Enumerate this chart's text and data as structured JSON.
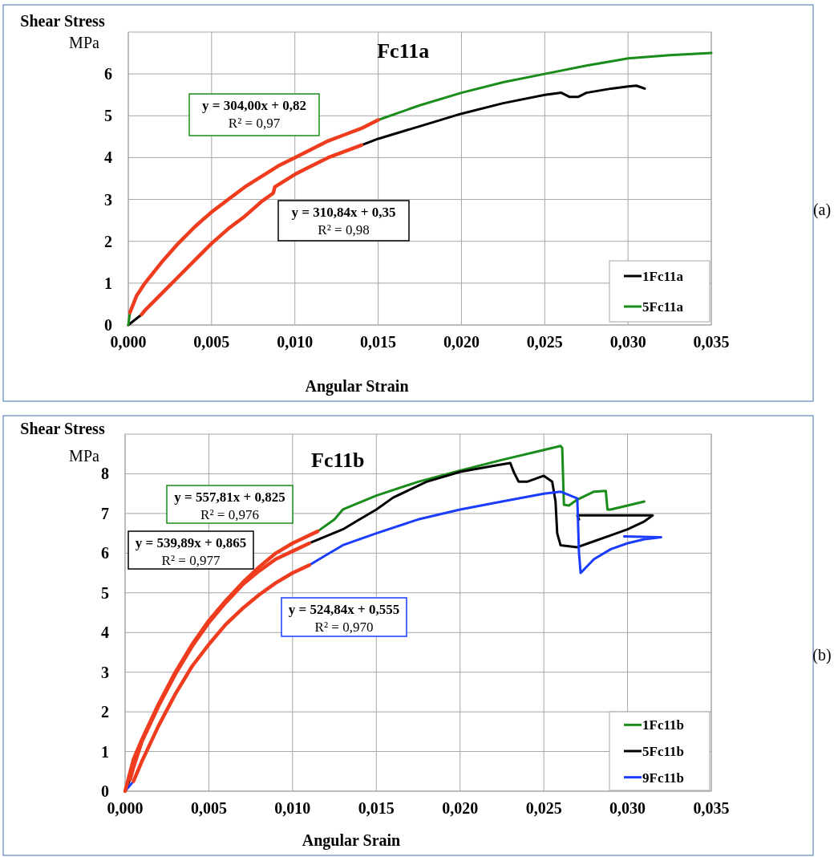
{
  "chart_data": [
    {
      "type": "line",
      "title": "Fc11a",
      "xlabel": "Angular Strain",
      "ylabel": "Shear Stress",
      "xlim": [
        0,
        0.035
      ],
      "xticks": [
        {
          "value": 0,
          "label": "0,000"
        },
        {
          "value": 0.005,
          "label": "0,005"
        },
        {
          "value": 0.01,
          "label": "0,010"
        },
        {
          "value": 0.015,
          "label": "0,015"
        },
        {
          "value": 0.02,
          "label": "0,020"
        },
        {
          "value": 0.025,
          "label": "0,025"
        },
        {
          "value": 0.03,
          "label": "0,030"
        },
        {
          "value": 0.035,
          "label": "0,035"
        }
      ],
      "ylim": [
        0,
        7
      ],
      "yticks": [
        0,
        1,
        2,
        3,
        4,
        5,
        6
      ],
      "grid": true,
      "legend": "bottom right",
      "annotations": [
        "MPa",
        "y = 304,00x + 0,82",
        "R² = 0,97",
        "y = 310,84x + 0,35",
        "R² = 0,98",
        "(a)"
      ],
      "series": [
        {
          "name": "1Fc11a",
          "color": "#000000",
          "x": [
            0,
            0.0008,
            0.0009,
            0.014,
            0.015,
            0.0175,
            0.02,
            0.0225,
            0.025,
            0.026,
            0.0265,
            0.027,
            0.0275,
            0.029,
            0.03,
            0.0305,
            0.031
          ],
          "values": [
            0,
            0.25,
            null,
            4.3,
            4.45,
            4.75,
            5.05,
            5.3,
            5.5,
            5.55,
            5.45,
            5.45,
            5.55,
            5.65,
            5.7,
            5.72,
            5.65
          ]
        },
        {
          "name": "5Fc11a",
          "color": "#1a8c1a",
          "x": [
            0,
            0.0001,
            0.0002,
            0.015,
            0.0175,
            0.02,
            0.0225,
            0.025,
            0.0275,
            0.03,
            0.0325,
            0.035
          ],
          "values": [
            0,
            0.3,
            null,
            4.9,
            5.25,
            5.55,
            5.8,
            6.0,
            6.2,
            6.37,
            6.45,
            6.5
          ]
        },
        {
          "color": "#f03c1e",
          "x": [
            0.0008,
            0.001,
            0.002,
            0.003,
            0.004,
            0.005,
            0.006,
            0.007,
            0.008,
            0.0087,
            0.0088,
            0.01,
            0.011,
            0.012,
            0.013,
            0.014
          ],
          "values": [
            0.25,
            0.35,
            0.75,
            1.15,
            1.55,
            1.95,
            2.3,
            2.6,
            2.95,
            3.15,
            3.3,
            3.6,
            3.8,
            4.0,
            4.15,
            4.3
          ]
        },
        {
          "color": "#f03c1e",
          "x": [
            0.0001,
            0.0005,
            0.001,
            0.002,
            0.003,
            0.004,
            0.005,
            0.006,
            0.007,
            0.008,
            0.009,
            0.01,
            0.011,
            0.012,
            0.013,
            0.014,
            0.015
          ],
          "values": [
            0.3,
            0.7,
            1.0,
            1.5,
            1.95,
            2.35,
            2.7,
            3.0,
            3.3,
            3.55,
            3.8,
            4.0,
            4.2,
            4.4,
            4.55,
            4.7,
            4.9
          ]
        }
      ]
    },
    {
      "type": "line",
      "title": "Fc11b",
      "xlabel": "Angular Srain",
      "ylabel": "Shear Stress",
      "xlim": [
        0,
        0.035
      ],
      "xticks": [
        {
          "value": 0,
          "label": "0,000"
        },
        {
          "value": 0.005,
          "label": "0,005"
        },
        {
          "value": 0.01,
          "label": "0,010"
        },
        {
          "value": 0.015,
          "label": "0,015"
        },
        {
          "value": 0.02,
          "label": "0,020"
        },
        {
          "value": 0.025,
          "label": "0,025"
        },
        {
          "value": 0.03,
          "label": "0,030"
        },
        {
          "value": 0.035,
          "label": "0,035"
        }
      ],
      "ylim": [
        0,
        9
      ],
      "yticks": [
        0,
        1,
        2,
        3,
        4,
        5,
        6,
        7,
        8
      ],
      "grid": true,
      "legend": "bottom right",
      "annotations": [
        "MPa",
        "y = 557,81x + 0,825",
        "R² = 0,976",
        "y = 539,89x + 0,865",
        "R² = 0,977",
        "y = 524,84x + 0,555",
        "R² = 0,970",
        "(b)"
      ],
      "series": [
        {
          "name": "1Fc11b",
          "color": "#1a8c1a",
          "x": [
            0.0115,
            0.0125,
            0.013,
            0.015,
            0.0175,
            0.02,
            0.0225,
            0.025,
            0.026,
            0.0261,
            0.02615,
            0.0262,
            0.0265,
            0.027,
            0.028,
            0.0287,
            0.0288,
            0.029,
            0.03,
            0.031
          ],
          "values": [
            6.55,
            6.85,
            7.1,
            7.45,
            7.8,
            8.08,
            8.35,
            8.6,
            8.7,
            8.65,
            7.93,
            7.22,
            7.2,
            7.35,
            7.55,
            7.57,
            7.1,
            7.1,
            7.2,
            7.3
          ]
        },
        {
          "name": "5Fc11b",
          "color": "#000000",
          "x": [
            0,
            0.0003,
            0.0004,
            0.011,
            0.013,
            0.014,
            0.015,
            0.016,
            0.018,
            0.02,
            0.022,
            0.023,
            0.0232,
            0.0235,
            0.024,
            0.025,
            0.0255,
            0.0257,
            0.0258,
            0.026,
            0.027,
            0.028,
            0.029,
            0.03,
            0.031,
            0.0315,
            0.027,
            0.0271
          ],
          "values": [
            0,
            0.3,
            null,
            6.25,
            6.6,
            6.85,
            7.1,
            7.4,
            7.8,
            8.05,
            8.2,
            8.27,
            8.05,
            7.8,
            7.8,
            7.95,
            7.8,
            7.3,
            6.5,
            6.2,
            6.15,
            6.3,
            6.45,
            6.6,
            6.8,
            6.95,
            6.95,
            6.85
          ]
        },
        {
          "name": "9Fc11b",
          "color": "#1a3cff",
          "x": [
            0,
            0.0005,
            0.0006,
            0.011,
            0.012,
            0.013,
            0.015,
            0.0175,
            0.02,
            0.0225,
            0.025,
            0.026,
            0.027,
            0.0271,
            0.0272,
            0.028,
            0.029,
            0.03,
            0.031,
            0.032,
            0.0298
          ],
          "values": [
            0,
            0.25,
            null,
            5.7,
            5.95,
            6.2,
            6.5,
            6.85,
            7.1,
            7.3,
            7.5,
            7.55,
            7.38,
            6.0,
            5.5,
            5.85,
            6.1,
            6.25,
            6.35,
            6.4,
            6.42
          ]
        },
        {
          "color": "#f03c1e",
          "x": [
            0,
            0.0005,
            0.001,
            0.002,
            0.003,
            0.004,
            0.005,
            0.006,
            0.007,
            0.008,
            0.009,
            0.01,
            0.0115
          ],
          "values": [
            0,
            0.8,
            1.3,
            2.2,
            3.0,
            3.7,
            4.3,
            4.8,
            5.25,
            5.65,
            6.0,
            6.25,
            6.55
          ]
        },
        {
          "color": "#f03c1e",
          "x": [
            0.0003,
            0.0005,
            0.001,
            0.002,
            0.003,
            0.004,
            0.005,
            0.006,
            0.007,
            0.008,
            0.009,
            0.01,
            0.011
          ],
          "values": [
            0.3,
            0.6,
            1.25,
            2.15,
            2.95,
            3.65,
            4.25,
            4.75,
            5.2,
            5.55,
            5.85,
            6.05,
            6.25
          ]
        },
        {
          "color": "#f03c1e",
          "x": [
            0.0005,
            0.001,
            0.002,
            0.003,
            0.004,
            0.005,
            0.006,
            0.007,
            0.008,
            0.009,
            0.01,
            0.011
          ],
          "values": [
            0.25,
            0.75,
            1.65,
            2.45,
            3.15,
            3.7,
            4.2,
            4.6,
            4.95,
            5.25,
            5.5,
            5.7
          ]
        }
      ]
    }
  ]
}
